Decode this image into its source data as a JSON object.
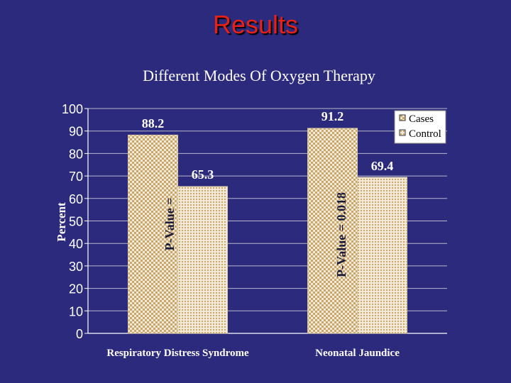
{
  "slide": {
    "title": "Results"
  },
  "chart_data": {
    "type": "bar",
    "title": "Different Modes Of Oxygen Therapy",
    "ylabel": "Percent",
    "xlabel": "",
    "categories": [
      "Respiratory Distress Syndrome",
      "Neonatal Jaundice"
    ],
    "series": [
      {
        "name": "Cases",
        "values": [
          88.2,
          91.2
        ]
      },
      {
        "name": "Control",
        "values": [
          65.3,
          69.4
        ]
      }
    ],
    "ylim": [
      0,
      100
    ],
    "yticks": [
      0,
      10,
      20,
      30,
      40,
      50,
      60,
      70,
      80,
      90,
      100
    ],
    "grid": true,
    "legend": "top-right",
    "annotations": [
      "P-Value =",
      "P-Value = 0.018"
    ],
    "colors": {
      "background": "#2b2a7c",
      "plot_area": "#2b2a7c",
      "bar_fill": "#f2ead6",
      "bar_pattern": "#c9a66b",
      "text": "#ffffff",
      "title": "#e8201a"
    }
  }
}
